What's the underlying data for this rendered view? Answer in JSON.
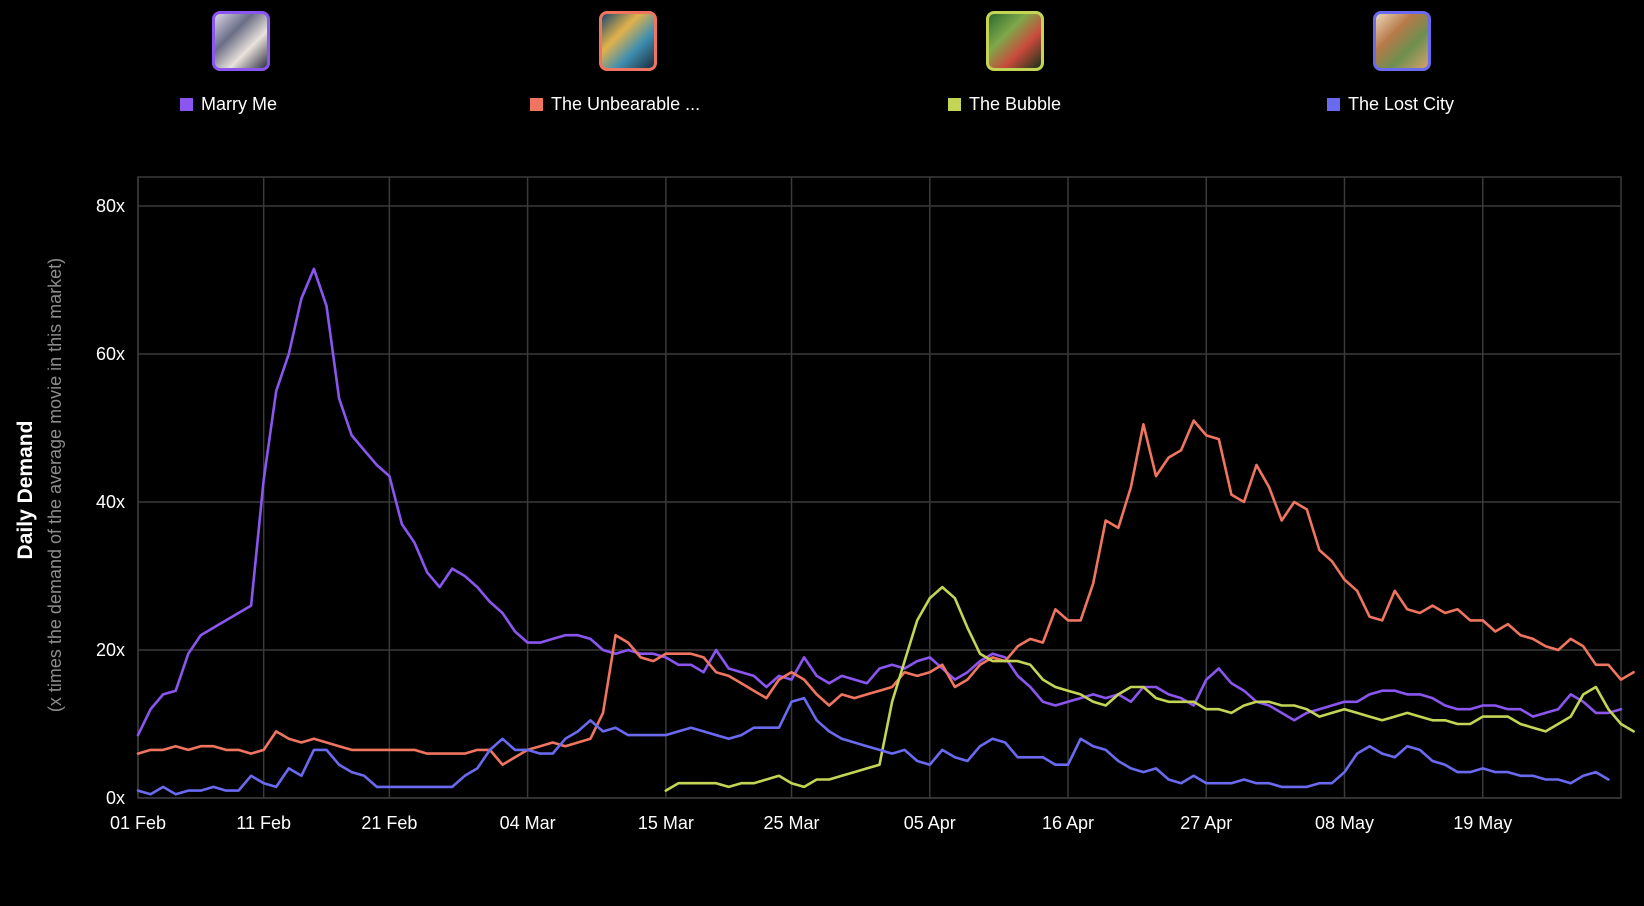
{
  "legend": [
    {
      "label": "Marry Me",
      "color": "#8b55f0",
      "poster_tones": [
        "#d9d4e8",
        "#6a6f86",
        "#e9e2dc",
        "#2d3142"
      ]
    },
    {
      "label": "The Unbearable ...",
      "color": "#f07560",
      "poster_tones": [
        "#1d4a6b",
        "#e3b24b",
        "#3f8fb0",
        "#1b2b3d"
      ]
    },
    {
      "label": "The Bubble",
      "color": "#c4d454",
      "poster_tones": [
        "#2e6b2d",
        "#7fa84b",
        "#c9493b",
        "#18331a"
      ]
    },
    {
      "label": "The Lost City",
      "color": "#6a6af0",
      "poster_tones": [
        "#e9d6b5",
        "#b77a4a",
        "#6d8f4f",
        "#d1a36b"
      ]
    }
  ],
  "chart_data": {
    "type": "line",
    "title": "",
    "ylabel": "Daily Demand",
    "ylabel_sub": "(x times the demand of the average movie in this market)",
    "ylim": [
      0,
      80
    ],
    "yticks": [
      "0x",
      "20x",
      "40x",
      "60x",
      "80x"
    ],
    "yticks_values": [
      0,
      20,
      40,
      60,
      80
    ],
    "x_start": "01 Feb",
    "x_days_total": 118,
    "xticks": [
      {
        "label": "01 Feb",
        "day": 0
      },
      {
        "label": "11 Feb",
        "day": 10
      },
      {
        "label": "21 Feb",
        "day": 20
      },
      {
        "label": "04 Mar",
        "day": 31
      },
      {
        "label": "15 Mar",
        "day": 42
      },
      {
        "label": "25 Mar",
        "day": 52
      },
      {
        "label": "05 Apr",
        "day": 63
      },
      {
        "label": "16 Apr",
        "day": 74
      },
      {
        "label": "27 Apr",
        "day": 85
      },
      {
        "label": "08 May",
        "day": 96
      },
      {
        "label": "19 May",
        "day": 107
      }
    ],
    "grid": true,
    "legend_position": "top",
    "series": [
      {
        "name": "Marry Me",
        "color": "#8b55f0",
        "start_day": 0,
        "values": [
          8.5,
          12,
          14,
          14.5,
          19.5,
          22,
          23,
          24,
          25,
          26,
          43,
          55,
          60,
          67.5,
          71.5,
          66.5,
          54,
          49,
          47,
          45,
          43.5,
          37,
          34.5,
          30.5,
          28.5,
          31,
          30,
          28.5,
          26.5,
          25,
          22.5,
          21,
          21,
          21.5,
          22,
          22,
          21.5,
          20,
          19.5,
          20,
          19.5,
          19.5,
          19,
          18,
          18,
          17,
          20,
          17.5,
          17,
          16.5,
          15,
          16.5,
          16,
          19,
          16.5,
          15.5,
          16.5,
          16,
          15.5,
          17.5,
          18,
          17.5,
          18.5,
          19,
          17.5,
          16,
          17,
          18.5,
          19.5,
          19,
          16.5,
          15,
          13,
          12.5,
          13,
          13.5,
          14,
          13.5,
          14,
          13,
          15,
          15,
          14,
          13.5,
          12.5,
          16,
          17.5,
          15.5,
          14.5,
          13,
          12.5,
          11.5,
          10.5,
          11.5,
          12,
          12.5,
          13,
          13,
          14,
          14.5,
          14.5,
          14,
          14,
          13.5,
          12.5,
          12,
          12,
          12.5,
          12.5,
          12,
          12,
          11,
          11.5,
          12,
          14,
          13,
          11.5,
          11.5,
          12
        ]
      },
      {
        "name": "The Unbearable ...",
        "color": "#f07560",
        "start_day": 0,
        "values": [
          6,
          6.5,
          6.5,
          7,
          6.5,
          7,
          7,
          6.5,
          6.5,
          6,
          6.5,
          9,
          8,
          7.5,
          8,
          7.5,
          7,
          6.5,
          6.5,
          6.5,
          6.5,
          6.5,
          6.5,
          6,
          6,
          6,
          6,
          6.5,
          6.5,
          4.5,
          5.5,
          6.5,
          7,
          7.5,
          7,
          7.5,
          8,
          11.5,
          22,
          21,
          19,
          18.5,
          19.5,
          19.5,
          19.5,
          19,
          17,
          16.5,
          15.5,
          14.5,
          13.5,
          16,
          17,
          16,
          14,
          12.5,
          14,
          13.5,
          14,
          14.5,
          15,
          17,
          16.5,
          17,
          18,
          15,
          16,
          18,
          19,
          18.5,
          20.5,
          21.5,
          21,
          25.5,
          24,
          24,
          29,
          37.5,
          36.5,
          42,
          50.5,
          43.5,
          46,
          47,
          51,
          49,
          48.5,
          41,
          40,
          45,
          42,
          37.5,
          40,
          39,
          33.5,
          32,
          29.5,
          28,
          24.5,
          24,
          28,
          25.5,
          25,
          26,
          25,
          25.5,
          24,
          24,
          22.5,
          23.5,
          22,
          21.5,
          20.5,
          20,
          21.5,
          20.5,
          18,
          18,
          16,
          17
        ]
      },
      {
        "name": "The Bubble",
        "color": "#c4d454",
        "start_day": 42,
        "values": [
          1,
          2,
          2,
          2,
          2,
          1.5,
          2,
          2,
          2.5,
          3,
          2,
          1.5,
          2.5,
          2.5,
          3,
          3.5,
          4,
          4.5,
          13,
          18.5,
          24,
          27,
          28.5,
          27,
          23,
          19.5,
          18.5,
          18.5,
          18.5,
          18,
          16,
          15,
          14.5,
          14,
          13,
          12.5,
          14,
          15,
          15,
          13.5,
          13,
          13,
          13,
          12,
          12,
          11.5,
          12.5,
          13,
          13,
          12.5,
          12.5,
          12,
          11,
          11.5,
          12,
          11.5,
          11,
          10.5,
          11,
          11.5,
          11,
          10.5,
          10.5,
          10,
          10,
          11,
          11,
          11,
          10,
          9.5,
          9,
          10,
          11,
          14,
          15,
          12,
          10,
          9
        ]
      },
      {
        "name": "The Lost City",
        "color": "#6a6af0",
        "start_day": 0,
        "values": [
          1,
          0.5,
          1.5,
          0.5,
          1,
          1,
          1.5,
          1,
          1,
          3,
          2,
          1.5,
          4,
          3,
          6.5,
          6.5,
          4.5,
          3.5,
          3,
          1.5,
          1.5,
          1.5,
          1.5,
          1.5,
          1.5,
          1.5,
          3,
          4,
          6.5,
          8,
          6.5,
          6.5,
          6,
          6,
          8,
          9,
          10.5,
          9,
          9.5,
          8.5,
          8.5,
          8.5,
          8.5,
          9,
          9.5,
          9,
          8.5,
          8,
          8.5,
          9.5,
          9.5,
          9.5,
          13,
          13.5,
          10.5,
          9,
          8,
          7.5,
          7,
          6.5,
          6,
          6.5,
          5,
          4.5,
          6.5,
          5.5,
          5,
          7,
          8,
          7.5,
          5.5,
          5.5,
          5.5,
          4.5,
          4.5,
          8,
          7,
          6.5,
          5,
          4,
          3.5,
          4,
          2.5,
          2,
          3,
          2,
          2,
          2,
          2.5,
          2,
          2,
          1.5,
          1.5,
          1.5,
          2,
          2,
          3.5,
          6,
          7,
          6,
          5.5,
          7,
          6.5,
          5,
          4.5,
          3.5,
          3.5,
          4,
          3.5,
          3.5,
          3,
          3,
          2.5,
          2.5,
          2,
          3,
          3.5,
          2.5
        ]
      }
    ]
  }
}
